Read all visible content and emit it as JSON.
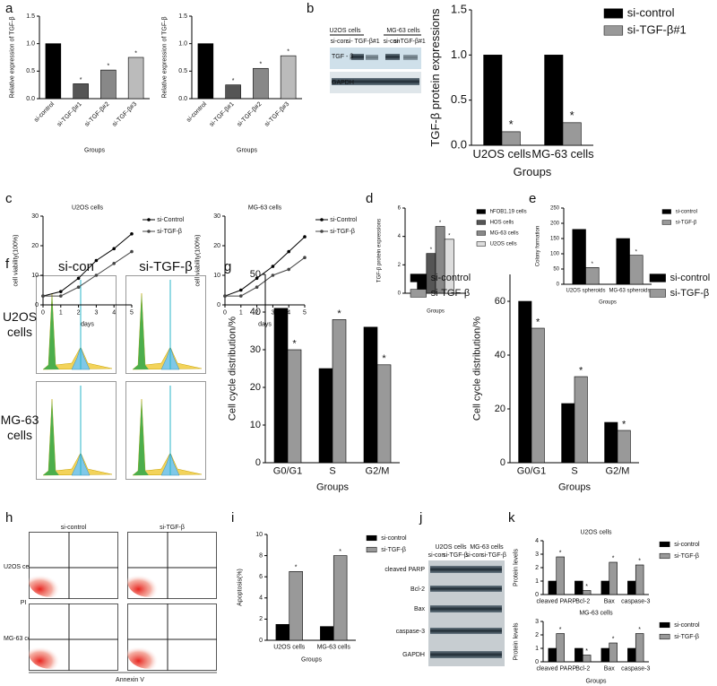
{
  "panel_labels": [
    "a",
    "b",
    "c",
    "d",
    "e",
    "f",
    "g",
    "h",
    "i",
    "j",
    "k"
  ],
  "blot_b": {
    "cell_lines": [
      "U2OS cells",
      "MG-63 cells"
    ],
    "lanes": [
      "si-con",
      "si- TGF-β#1",
      "si-con",
      "si-TGF-β#1"
    ],
    "rows": [
      "TGF - β",
      "GAPDH"
    ]
  },
  "flow_f": {
    "columns": [
      "si-con",
      "si-TGF-β"
    ],
    "rows": [
      "U2OS cells",
      "MG-63 cells"
    ]
  },
  "flow_h": {
    "columns": [
      "si-control",
      "si-TGF-β"
    ],
    "rows": [
      "U2OS cells",
      "MG-63 cells"
    ],
    "y_axis": "PI",
    "x_axis": "Annexin V"
  },
  "blot_j": {
    "cell_lines": [
      "U2OS cells",
      "MG-63 cells"
    ],
    "lanes": [
      "si-con",
      "si-TGF-β",
      "si-con",
      "si-TGF-β"
    ],
    "rows": [
      "cleaved PARP",
      "Bcl-2",
      "Bax",
      "caspase-3",
      "GAPDH"
    ]
  },
  "chart_data": [
    {
      "type": "bar",
      "ylabel": "Relative expression of TGF-β",
      "xlabel": "Groups",
      "categories": [
        "si-control",
        "si-TGF-β#1",
        "si-TGF-β#2",
        "si-TGF-β#3"
      ],
      "values": [
        1.0,
        0.27,
        0.52,
        0.75
      ],
      "colors": [
        "#000000",
        "#555555",
        "#888888",
        "#bbbbbb"
      ],
      "significance": [
        null,
        "*",
        "*",
        "*"
      ],
      "ylim": [
        0,
        1.5
      ],
      "yticks": [
        {
          "value": 0,
          "label": "0.0"
        },
        {
          "value": 0.5,
          "label": "0.5"
        },
        {
          "value": 1,
          "label": "1.0"
        },
        {
          "value": 1.5,
          "label": "1.5"
        }
      ]
    },
    {
      "type": "bar",
      "ylabel": "Relative expression of TGF-β",
      "xlabel": "Groups",
      "categories": [
        "si-control",
        "si-TGF-β#1",
        "si-TGF-β#2",
        "si-TGF-β#3"
      ],
      "values": [
        1.0,
        0.25,
        0.55,
        0.78
      ],
      "colors": [
        "#000000",
        "#555555",
        "#888888",
        "#bbbbbb"
      ],
      "significance": [
        null,
        "*",
        "*",
        "*"
      ],
      "ylim": [
        0,
        1.5
      ],
      "yticks": [
        {
          "value": 0,
          "label": "0.0"
        },
        {
          "value": 0.5,
          "label": "0.5"
        },
        {
          "value": 1,
          "label": "1.0"
        },
        {
          "value": 1.5,
          "label": "1.5"
        }
      ]
    },
    {
      "type": "bar",
      "ylabel": "TGF-β  protein expressions",
      "xlabel": "Groups",
      "categories": [
        "U2OS cells",
        "MG-63 cells"
      ],
      "series": [
        {
          "name": "si-control",
          "color": "#000000",
          "values": [
            1.0,
            1.0
          ],
          "significance": [
            null,
            null
          ]
        },
        {
          "name": "si-TGF-β#1",
          "color": "#999999",
          "values": [
            0.15,
            0.25
          ],
          "significance": [
            "*",
            "*"
          ]
        }
      ],
      "ylim": [
        0,
        1.5
      ],
      "yticks": [
        {
          "value": 0,
          "label": "0.0"
        },
        {
          "value": 0.5,
          "label": "0.5"
        },
        {
          "value": 1,
          "label": "1.0"
        },
        {
          "value": 1.5,
          "label": "1.5"
        }
      ],
      "legend": "right"
    },
    {
      "type": "line",
      "title": "U2OS  cells",
      "ylabel": "cell viability(100%)",
      "xlabel": "days",
      "x": [
        0,
        1,
        2,
        3,
        4,
        5
      ],
      "series": [
        {
          "name": "si-Control",
          "color": "#000000",
          "values": [
            3,
            4.5,
            9,
            15,
            19,
            24
          ]
        },
        {
          "name": "si-TGF-β",
          "color": "#444444",
          "values": [
            3,
            3,
            6,
            10,
            14,
            18
          ]
        }
      ],
      "xlim": [
        0,
        5
      ],
      "xticks": [
        0,
        1,
        2,
        3,
        4,
        5
      ],
      "ylim": [
        0,
        30
      ],
      "yticks": [
        0,
        10,
        20,
        30
      ],
      "legend": "right"
    },
    {
      "type": "line",
      "title": "MG-63 cells",
      "ylabel": "cell viability(100%)",
      "xlabel": "days",
      "x": [
        0,
        1,
        2,
        3,
        4,
        5
      ],
      "series": [
        {
          "name": "si-Control",
          "color": "#000000",
          "values": [
            3,
            5,
            9,
            13,
            18,
            23
          ]
        },
        {
          "name": "si-TGF-β",
          "color": "#444444",
          "values": [
            3,
            3,
            6,
            10,
            12,
            16
          ]
        }
      ],
      "xlim": [
        0,
        5
      ],
      "xticks": [
        0,
        1,
        2,
        3,
        4,
        5
      ],
      "ylim": [
        0,
        30
      ],
      "yticks": [
        0,
        10,
        20,
        30
      ],
      "legend": "right"
    },
    {
      "type": "bar",
      "ylabel": "TGF-β protein expressions",
      "xlabel": "Groups",
      "categories": [
        null
      ],
      "series": [
        {
          "name": "hFOB1.19 cells",
          "color": "#000000",
          "values": [
            1.0
          ],
          "significance": [
            null
          ]
        },
        {
          "name": "HOS cells",
          "color": "#555555",
          "values": [
            2.8
          ],
          "significance": [
            "*"
          ]
        },
        {
          "name": "MG-63 cells",
          "color": "#888888",
          "values": [
            4.7
          ],
          "significance": [
            "*"
          ]
        },
        {
          "name": "U2OS cells",
          "color": "#dddddd",
          "values": [
            3.8
          ],
          "significance": [
            "*"
          ]
        }
      ],
      "ylim": [
        0,
        6
      ],
      "yticks": [
        0,
        2,
        4,
        6
      ],
      "legend": "right"
    },
    {
      "type": "bar",
      "ylabel": "Colony formation",
      "xlabel": "Groups",
      "categories": [
        "U2OS spheroids",
        "MG-63 spheroids"
      ],
      "series": [
        {
          "name": "si-control",
          "color": "#000000",
          "values": [
            180,
            150
          ],
          "significance": [
            null,
            null
          ]
        },
        {
          "name": "si-TGF-β",
          "color": "#999999",
          "values": [
            55,
            95
          ],
          "significance": [
            "*",
            "*"
          ]
        }
      ],
      "ylim": [
        0,
        250
      ],
      "yticks": [
        0,
        50,
        100,
        150,
        200,
        250
      ],
      "legend": "right"
    },
    {
      "type": "bar",
      "ylabel": "Cell cycle distribution/%",
      "xlabel": "Groups",
      "categories": [
        "G0/G1",
        "S",
        "G2/M"
      ],
      "series": [
        {
          "name": "si-control",
          "color": "#000000",
          "values": [
            41,
            25,
            36
          ],
          "significance": [
            null,
            null,
            null
          ]
        },
        {
          "name": "si-TGF-β",
          "color": "#999999",
          "values": [
            30,
            38,
            26
          ],
          "significance": [
            "*",
            "*",
            "*"
          ]
        }
      ],
      "ylim": [
        0,
        50
      ],
      "yticks": [
        0,
        10,
        20,
        30,
        40,
        50
      ],
      "legend": "right"
    },
    {
      "type": "bar",
      "ylabel": "Cell cycle distribution/%",
      "xlabel": "Groups",
      "categories": [
        "G0/G1",
        "S",
        "G2/M"
      ],
      "series": [
        {
          "name": "si-control",
          "color": "#000000",
          "values": [
            60,
            22,
            15
          ],
          "significance": [
            null,
            null,
            null
          ]
        },
        {
          "name": "si-TGF-β",
          "color": "#999999",
          "values": [
            50,
            32,
            12
          ],
          "significance": [
            "*",
            "*",
            "*"
          ]
        }
      ],
      "ylim": [
        0,
        70
      ],
      "yticks": [
        0,
        20,
        40,
        60
      ],
      "legend": "right"
    },
    {
      "type": "bar",
      "ylabel": "Apoptosis(%)",
      "xlabel": "Groups",
      "categories": [
        "U2OS cells",
        "MG-63 cells"
      ],
      "series": [
        {
          "name": "si-control",
          "color": "#000000",
          "values": [
            1.5,
            1.3
          ],
          "significance": [
            null,
            null
          ]
        },
        {
          "name": "si-TGF-β",
          "color": "#999999",
          "values": [
            6.5,
            8
          ],
          "significance": [
            "*",
            "*"
          ]
        }
      ],
      "ylim": [
        0,
        10
      ],
      "yticks": [
        0,
        2,
        4,
        6,
        8,
        10
      ],
      "legend": "right"
    },
    {
      "type": "bar",
      "title": "U2OS cells",
      "ylabel": "Protein levels",
      "categories": [
        "cleaved PARP",
        "Bcl-2",
        "Bax",
        "caspase-3"
      ],
      "series": [
        {
          "name": "si-control",
          "color": "#000000",
          "values": [
            1,
            1,
            1,
            1
          ],
          "significance": [
            null,
            null,
            null,
            null
          ]
        },
        {
          "name": "si-TGF-β",
          "color": "#999999",
          "values": [
            2.8,
            0.3,
            2.4,
            2.2
          ],
          "significance": [
            "*",
            "*",
            "*",
            "*"
          ]
        }
      ],
      "ylim": [
        0,
        4
      ],
      "yticks": [
        0,
        1,
        2,
        3,
        4
      ],
      "legend": "right"
    },
    {
      "type": "bar",
      "title": "MG-63 cells",
      "ylabel": "Protein levels",
      "xlabel": "Groups",
      "categories": [
        "cleaved PARP",
        "Bcl-2",
        "Bax",
        "caspase-3"
      ],
      "series": [
        {
          "name": "si-control",
          "color": "#000000",
          "values": [
            1,
            1,
            1,
            1
          ],
          "significance": [
            null,
            null,
            null,
            null
          ]
        },
        {
          "name": "si-TGF-β",
          "color": "#999999",
          "values": [
            2.1,
            0.5,
            1.4,
            2.1
          ],
          "significance": [
            "*",
            "*",
            "*",
            "*"
          ]
        }
      ],
      "ylim": [
        0,
        3
      ],
      "yticks": [
        0,
        1,
        2,
        3
      ],
      "legend": "right"
    }
  ]
}
